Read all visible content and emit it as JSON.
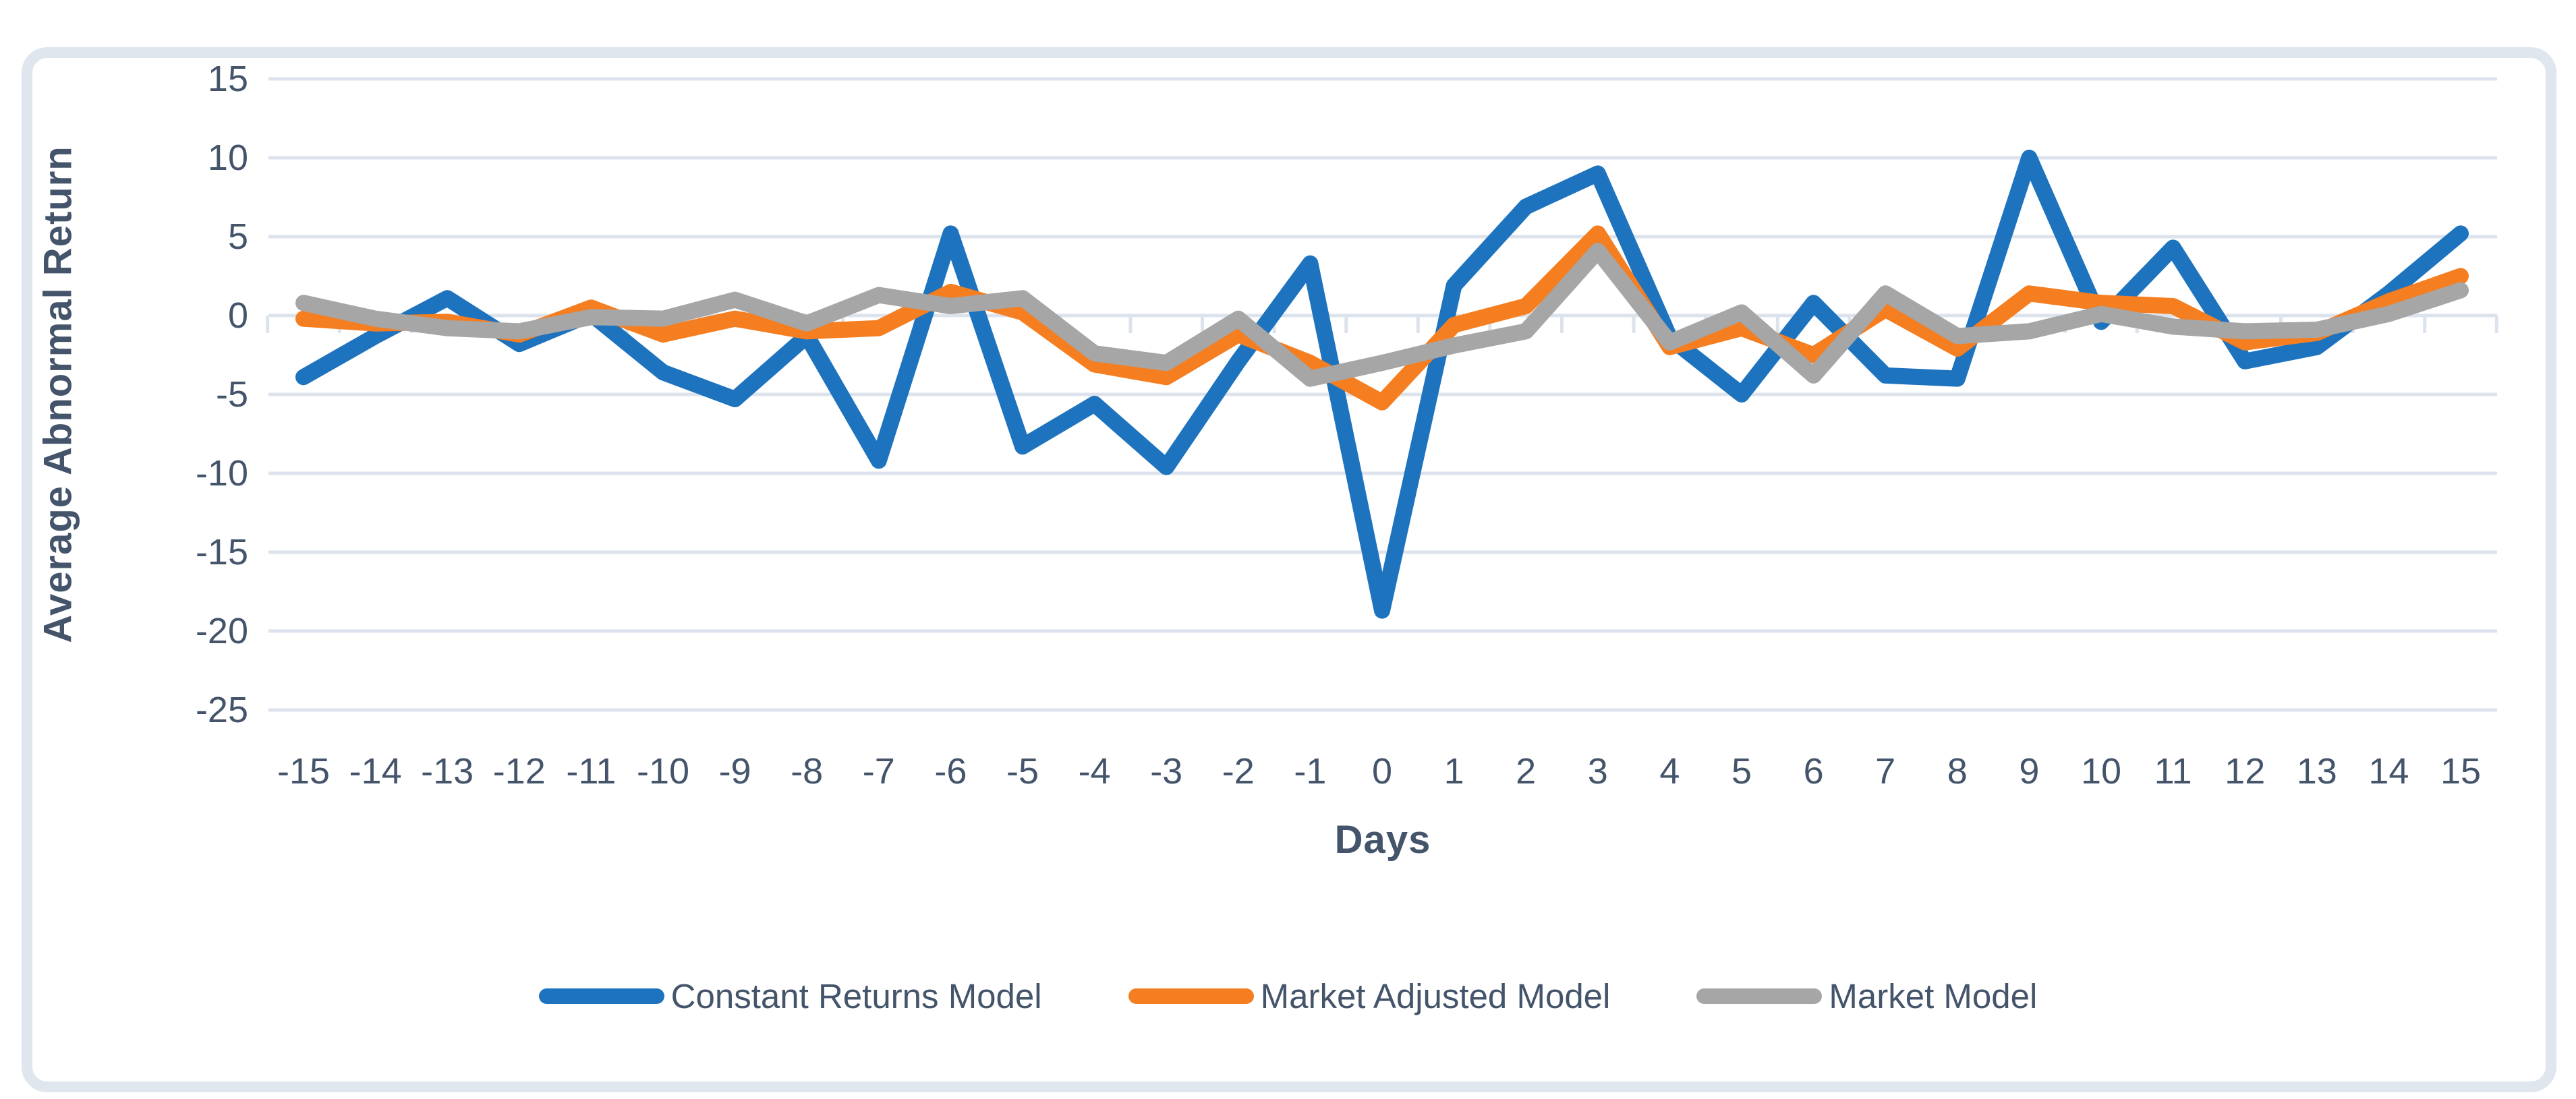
{
  "chart_data": {
    "type": "line",
    "title": "",
    "xlabel": "Days",
    "ylabel": "Average Abnormal Return",
    "x": [
      -15,
      -14,
      -13,
      -12,
      -11,
      -10,
      -9,
      -8,
      -7,
      -6,
      -5,
      -4,
      -3,
      -2,
      -1,
      0,
      1,
      2,
      3,
      4,
      5,
      6,
      7,
      8,
      9,
      10,
      11,
      12,
      13,
      14,
      15
    ],
    "ylim": [
      -25,
      15
    ],
    "yticks": [
      15,
      10,
      5,
      0,
      -5,
      -10,
      -15,
      -20,
      -25
    ],
    "grid": true,
    "legend_position": "bottom",
    "series": [
      {
        "name": "Constant Returns Model",
        "color": "#1E73BE",
        "values": [
          -3.9,
          -1.3,
          1.1,
          -1.8,
          0.1,
          -3.6,
          -5.3,
          -1.3,
          -9.2,
          5.2,
          -8.3,
          -5.6,
          -9.6,
          -2.9,
          3.3,
          -18.7,
          1.9,
          6.9,
          9.0,
          -1.4,
          -5.0,
          0.8,
          -3.8,
          -4.0,
          10.0,
          -0.4,
          4.3,
          -2.9,
          -2.0,
          1.4,
          5.2
        ]
      },
      {
        "name": "Market Adjusted Model",
        "color": "#F57E20",
        "values": [
          -0.2,
          -0.5,
          -0.4,
          -1.2,
          0.5,
          -1.2,
          -0.2,
          -1.0,
          -0.8,
          1.5,
          0.2,
          -3.1,
          -3.9,
          -1.2,
          -3.0,
          -5.5,
          -0.6,
          0.6,
          5.2,
          -2.0,
          -0.8,
          -2.5,
          0.4,
          -2.1,
          1.4,
          0.8,
          0.6,
          -1.7,
          -1.1,
          0.9,
          2.5
        ]
      },
      {
        "name": "Market Model",
        "color": "#A6A6A6",
        "values": [
          0.8,
          -0.2,
          -0.8,
          -1.0,
          -0.1,
          -0.2,
          1.0,
          -0.5,
          1.3,
          0.6,
          1.1,
          -2.4,
          -3.0,
          -0.2,
          -4.0,
          -3.0,
          -1.9,
          -1.0,
          4.1,
          -1.7,
          0.2,
          -3.8,
          1.4,
          -1.3,
          -1.0,
          0.1,
          -0.7,
          -1.0,
          -0.9,
          0.1,
          1.6
        ]
      }
    ]
  },
  "style": {
    "text_color": "#44546A",
    "gridline_color": "#DDE3ED",
    "border_color": "#DFE6EE",
    "background": "#FFFFFF"
  }
}
